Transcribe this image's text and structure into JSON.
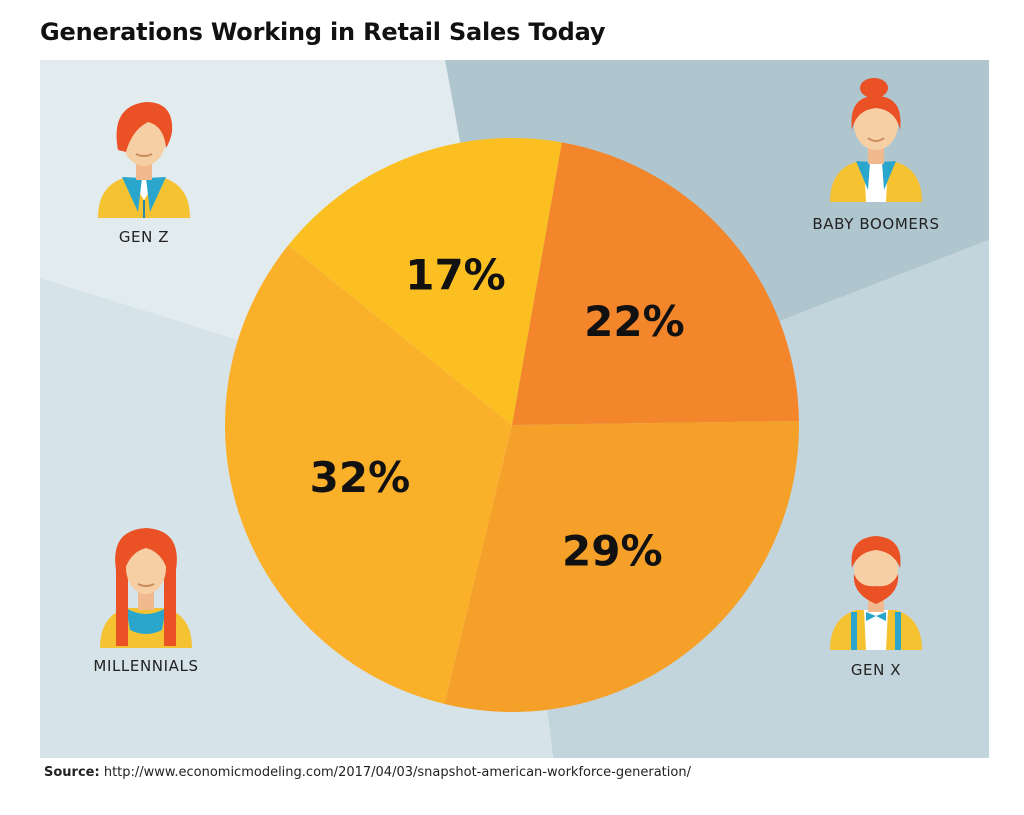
{
  "chart_data": {
    "type": "pie",
    "title": "Generations Working in Retail Sales Today",
    "slices": [
      {
        "label": "BABY BOOMERS",
        "value": 22,
        "value_label": "22%",
        "color": "#f3852a"
      },
      {
        "label": "GEN X",
        "value": 29,
        "value_label": "29%",
        "color": "#f5a028"
      },
      {
        "label": "MILLENNIALS",
        "value": 32,
        "value_label": "32%",
        "color": "#fbb02a"
      },
      {
        "label": "GEN Z",
        "value": 17,
        "value_label": "17%",
        "color": "#fcbf21"
      }
    ],
    "background_colors": [
      "#e2ebee",
      "#afc6cf",
      "#c3d5dc",
      "#d6e3e8"
    ]
  },
  "source": {
    "label": "Source:",
    "url": "http://www.economicmodeling.com/2017/04/03/snapshot-american-workforce-generation/"
  }
}
